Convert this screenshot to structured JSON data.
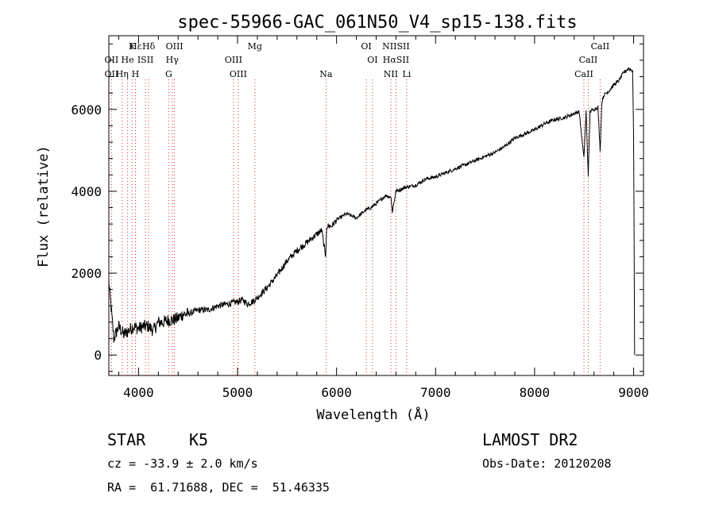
{
  "chart_data": {
    "type": "line",
    "title": "spec-55966-GAC_061N50_V4_sp15-138.fits",
    "xlabel": "Wavelength (Å)",
    "ylabel": "Flux (relative)",
    "xlim": [
      3700,
      9100
    ],
    "ylim": [
      -500,
      7800
    ],
    "xticks": [
      4000,
      5000,
      6000,
      7000,
      8000,
      9000
    ],
    "yticks": [
      0,
      2000,
      4000,
      6000
    ],
    "grid": false,
    "series": [
      {
        "color": "#000000",
        "x": [
          3700,
          3750,
          3800,
          3850,
          3900,
          3950,
          4000,
          4050,
          4100,
          4150,
          4200,
          4250,
          4300,
          4350,
          4400,
          4450,
          4500,
          4600,
          4700,
          4800,
          4900,
          5000,
          5050,
          5100,
          5150,
          5200,
          5300,
          5400,
          5500,
          5600,
          5700,
          5800,
          5850,
          5890,
          5900,
          5950,
          6000,
          6100,
          6200,
          6300,
          6350,
          6400,
          6500,
          6550,
          6563,
          6600,
          6700,
          6800,
          6900,
          7000,
          7100,
          7200,
          7300,
          7400,
          7500,
          7600,
          7700,
          7800,
          7900,
          8000,
          8100,
          8200,
          8300,
          8400,
          8450,
          8498,
          8520,
          8542,
          8560,
          8600,
          8640,
          8662,
          8680,
          8700,
          8750,
          8800,
          8850,
          8900,
          8950,
          8990,
          9000,
          9010
        ],
        "y": [
          1800,
          400,
          700,
          500,
          600,
          700,
          650,
          700,
          700,
          600,
          800,
          800,
          850,
          850,
          900,
          1000,
          1000,
          1100,
          1100,
          1200,
          1250,
          1300,
          1350,
          1250,
          1300,
          1400,
          1650,
          1950,
          2300,
          2550,
          2750,
          2950,
          3050,
          2400,
          3150,
          3150,
          3300,
          3450,
          3350,
          3550,
          3600,
          3700,
          3900,
          3850,
          3500,
          4000,
          4100,
          4150,
          4300,
          4350,
          4450,
          4550,
          4650,
          4750,
          4850,
          4950,
          5100,
          5300,
          5400,
          5500,
          5650,
          5750,
          5800,
          5900,
          5950,
          4800,
          5950,
          4400,
          5950,
          6000,
          6050,
          5000,
          6200,
          6350,
          6450,
          6600,
          6700,
          6900,
          7000,
          6950,
          5400,
          0
        ]
      }
    ],
    "line_markers": [
      {
        "label": "Hε",
        "x": 3970,
        "row": 0
      },
      {
        "label": "K",
        "x": 3934,
        "row": 0
      },
      {
        "label": "Hδ",
        "x": 4102,
        "row": 0
      },
      {
        "label": "OIII",
        "x": 4363,
        "row": 0
      },
      {
        "label": "Mg",
        "x": 5175,
        "row": 0
      },
      {
        "label": "OI",
        "x": 6300,
        "row": 0
      },
      {
        "label": "NIISII",
        "x": 6600,
        "row": 0
      },
      {
        "label": "CaII",
        "x": 8662,
        "row": 0
      },
      {
        "label": "OII",
        "x": 3727,
        "row": 1
      },
      {
        "label": "He",
        "x": 3889,
        "row": 1
      },
      {
        "label": "ISII",
        "x": 4070,
        "row": 1
      },
      {
        "label": "Hγ",
        "x": 4340,
        "row": 1
      },
      {
        "label": "OIII",
        "x": 4959,
        "row": 1
      },
      {
        "label": "OI",
        "x": 6363,
        "row": 1
      },
      {
        "label": "HαSII",
        "x": 6600,
        "row": 1
      },
      {
        "label": "CaII",
        "x": 8542,
        "row": 1
      },
      {
        "label": "OII",
        "x": 3727,
        "row": 2
      },
      {
        "label": "Hη",
        "x": 3835,
        "row": 2
      },
      {
        "label": "H",
        "x": 3968,
        "row": 2
      },
      {
        "label": "G",
        "x": 4305,
        "row": 2
      },
      {
        "label": "OIII",
        "x": 5007,
        "row": 2
      },
      {
        "label": "Na",
        "x": 5893,
        "row": 2
      },
      {
        "label": "NII",
        "x": 6548,
        "row": 2
      },
      {
        "label": "Li",
        "x": 6708,
        "row": 2
      },
      {
        "label": "CaII",
        "x": 8498,
        "row": 2
      }
    ]
  },
  "info": {
    "object_class": "STAR",
    "subclass": "K5",
    "survey": "LAMOST DR2",
    "redshift": "cz = -33.9 ± 2.0 km/s",
    "obs_date": "Obs-Date: 20120208",
    "coords": "RA =  61.71688, DEC =  51.46335"
  },
  "colors": {
    "line_marker": "#e03030",
    "spectrum": "#000000"
  }
}
